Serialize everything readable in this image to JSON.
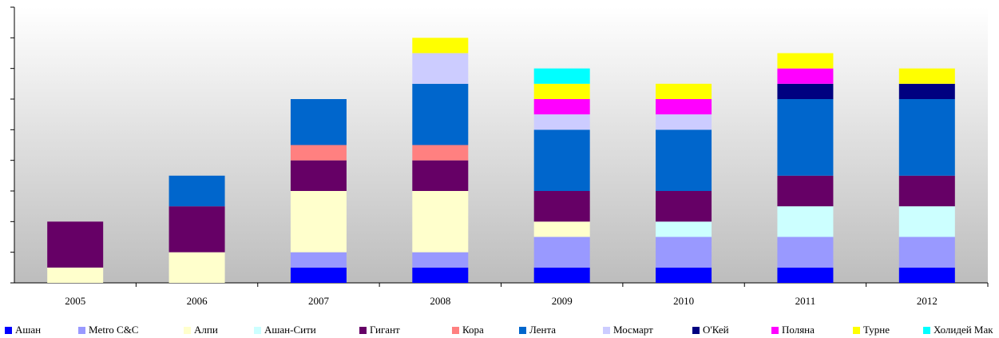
{
  "chart_data": {
    "type": "stacked_bar",
    "categories": [
      "2005",
      "2006",
      "2007",
      "2008",
      "2009",
      "2010",
      "2011",
      "2012"
    ],
    "series": [
      {
        "name": "Ашан",
        "color": "#0000ff",
        "values": [
          0,
          0,
          0.5,
          0.5,
          0.5,
          0.5,
          0.5,
          0.5
        ]
      },
      {
        "name": "Metro C&C",
        "color": "#9999ff",
        "values": [
          0,
          0,
          0.5,
          0.5,
          1,
          1,
          1,
          1
        ]
      },
      {
        "name": "Алпи",
        "color": "#ffffcc",
        "values": [
          0.5,
          1,
          2,
          2,
          0.5,
          0,
          0,
          0
        ]
      },
      {
        "name": "Ашан-Сити",
        "color": "#ccffff",
        "values": [
          0,
          0,
          0,
          0,
          0,
          0.5,
          1,
          1
        ]
      },
      {
        "name": "Гигант",
        "color": "#660066",
        "values": [
          1.5,
          1.5,
          1,
          1,
          1,
          1,
          1,
          1
        ]
      },
      {
        "name": "Кора",
        "color": "#ff8080",
        "values": [
          0,
          0,
          0.5,
          0.5,
          0,
          0,
          0,
          0
        ]
      },
      {
        "name": "Лента",
        "color": "#0066cc",
        "values": [
          0,
          1,
          1.5,
          2,
          2,
          2,
          2.5,
          2.5
        ]
      },
      {
        "name": "Мосмарт",
        "color": "#ccccff",
        "values": [
          0,
          0,
          0,
          1,
          0.5,
          0.5,
          0,
          0
        ]
      },
      {
        "name": "О'Кей",
        "color": "#000080",
        "values": [
          0,
          0,
          0,
          0,
          0,
          0,
          0.5,
          0.5
        ]
      },
      {
        "name": "Поляна",
        "color": "#ff00ff",
        "values": [
          0,
          0,
          0,
          0,
          0.5,
          0.5,
          0.5,
          0
        ]
      },
      {
        "name": "Турне",
        "color": "#ffff00",
        "values": [
          0,
          0,
          0,
          0.5,
          0.5,
          0.5,
          0.5,
          0.5
        ]
      },
      {
        "name": "Холидей Мак",
        "color": "#00ffff",
        "values": [
          0,
          0,
          0,
          0,
          0.5,
          0,
          0,
          0
        ]
      }
    ],
    "ylim": [
      0,
      9
    ],
    "yticks": [
      0,
      1,
      2,
      3,
      4,
      5,
      6,
      7,
      8,
      9
    ],
    "legend": "bottom"
  }
}
